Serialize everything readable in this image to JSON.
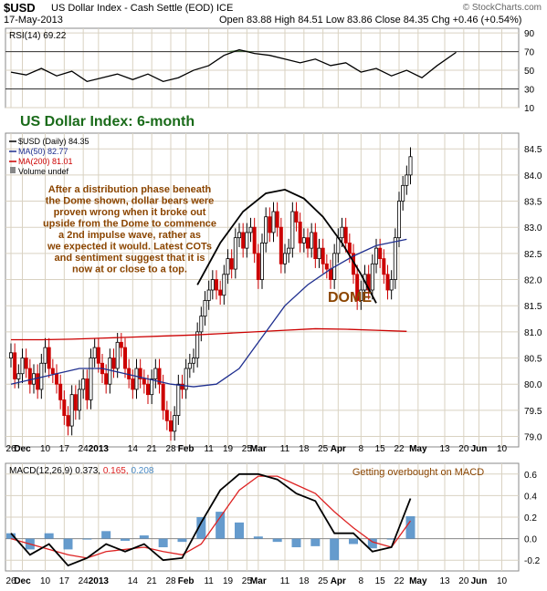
{
  "header": {
    "symbol": "$USD",
    "title": "US Dollar Index - Cash Settle (EOD)  ICE",
    "date": "17-May-2013",
    "ohlc": "Open 83.88   High 84.51   Low 83.86   Close 84.35   Chg +0.46 (+0.54%)",
    "watermark": "© StockCharts.com"
  },
  "colors": {
    "grid": "#d9d2c2",
    "panel_bg": "#ffffff",
    "up": "#000000",
    "down": "#cc0000",
    "ma50": "#1f2f8f",
    "ma200": "#cc0000",
    "rsi_fill": "#4a7a3a",
    "macd": "#000000",
    "signal": "#dd2222",
    "hist": "#4a8ac4",
    "title_green": "#1a6b1a",
    "annot_brown": "#8b4500"
  },
  "chart_data": [
    {
      "type": "line",
      "name_label": "RSI(14) 69.22",
      "ylim": [
        10,
        95
      ],
      "yticks": [
        10,
        30,
        50,
        70,
        90
      ],
      "guides": [
        30,
        70
      ],
      "x": [
        0,
        4,
        8,
        12,
        16,
        20,
        24,
        28,
        32,
        36,
        40,
        44,
        48,
        52,
        56,
        60,
        64,
        68,
        72,
        76,
        80,
        84,
        88,
        92,
        96,
        100,
        104,
        108,
        112,
        117
      ],
      "values": [
        48,
        45,
        52,
        44,
        49,
        38,
        42,
        46,
        40,
        46,
        38,
        42,
        50,
        55,
        66,
        72,
        68,
        66,
        62,
        58,
        62,
        55,
        58,
        48,
        52,
        44,
        50,
        42,
        55,
        69.22
      ]
    },
    {
      "type": "candlestick",
      "title": "US Dollar Index: 6-month",
      "legend": [
        "$USD (Daily) 84.35",
        "MA(50) 82.77",
        "MA(200) 81.01",
        "Volume undef"
      ],
      "ylim": [
        78.8,
        84.8
      ],
      "yticks": [
        79.0,
        79.5,
        80.0,
        80.5,
        81.0,
        81.5,
        82.0,
        82.5,
        83.0,
        83.5,
        84.0,
        84.5
      ],
      "close": [
        80.6,
        80.1,
        80.2,
        80.5,
        80.3,
        80.0,
        80.2,
        79.9,
        80.4,
        80.7,
        80.3,
        80.2,
        80.0,
        79.7,
        79.4,
        79.2,
        79.8,
        79.5,
        79.9,
        80.1,
        79.7,
        80.5,
        80.7,
        80.4,
        80.2,
        80.0,
        80.5,
        80.3,
        80.8,
        80.7,
        80.3,
        80.1,
        79.9,
        80.3,
        80.1,
        80.0,
        79.8,
        80.1,
        80.3,
        80.0,
        79.5,
        79.3,
        79.1,
        79.4,
        80.0,
        79.9,
        80.3,
        80.4,
        80.5,
        81.0,
        81.3,
        81.6,
        81.8,
        82.0,
        81.8,
        81.7,
        82.1,
        82.4,
        82.2,
        82.8,
        82.9,
        82.6,
        82.9,
        83.0,
        82.5,
        82.0,
        82.7,
        83.2,
        82.9,
        83.3,
        83.0,
        82.3,
        82.5,
        82.6,
        83.3,
        83.1,
        82.7,
        82.8,
        82.6,
        82.9,
        82.4,
        82.6,
        82.3,
        82.2,
        82.0,
        82.5,
        82.8,
        83.0,
        82.7,
        82.5,
        82.1,
        81.6,
        81.8,
        82.1,
        81.8,
        82.3,
        82.6,
        82.4,
        82.1,
        81.8,
        82.0,
        82.8,
        83.5,
        83.8,
        84.0,
        84.35
      ],
      "ma50": [
        80.0,
        80.1,
        80.2,
        80.3,
        80.3,
        80.2,
        80.1,
        80.0,
        79.95,
        80.0,
        80.3,
        80.9,
        81.5,
        81.9,
        82.2,
        82.45,
        82.65,
        82.77
      ],
      "ma50_x": [
        0,
        6,
        12,
        18,
        24,
        30,
        36,
        42,
        48,
        54,
        60,
        66,
        72,
        78,
        84,
        90,
        96,
        104
      ],
      "ma200": [
        80.85,
        80.85,
        80.86,
        80.88,
        80.9,
        80.92,
        80.94,
        80.97,
        81.0,
        81.03,
        81.06,
        81.05,
        81.03,
        81.01
      ],
      "ma200_x": [
        0,
        8,
        16,
        24,
        32,
        40,
        48,
        56,
        64,
        72,
        80,
        88,
        96,
        104
      ],
      "dome_label": "DOME",
      "dome": [
        [
          49,
          81.9
        ],
        [
          55,
          82.7
        ],
        [
          61,
          83.3
        ],
        [
          67,
          83.65
        ],
        [
          72,
          83.72
        ],
        [
          77,
          83.55
        ],
        [
          82,
          83.2
        ],
        [
          87,
          82.7
        ],
        [
          92,
          82.1
        ],
        [
          96,
          81.55
        ]
      ],
      "annotation": [
        "After a distribution phase beneath",
        "the Dome shown, dollar bears were",
        "proven wrong when it broke out",
        "upside from the Dome to commence",
        "a 2nd impulse wave, rather as",
        "we expected it would. Latest COTs",
        "and sentiment suggest that it is",
        "now at or close to a top."
      ]
    },
    {
      "type": "line",
      "name_label": "MACD(12,26,9)",
      "legend_values": [
        "0.373",
        "0.165",
        "0.208"
      ],
      "annotation": "Getting overbought on MACD",
      "ylim": [
        -0.3,
        0.7
      ],
      "yticks": [
        -0.2,
        0.0,
        0.2,
        0.4,
        0.6
      ],
      "x": [
        0,
        5,
        10,
        15,
        20,
        25,
        30,
        35,
        40,
        45,
        50,
        55,
        60,
        65,
        70,
        75,
        80,
        85,
        90,
        95,
        100,
        105
      ],
      "macd": [
        0.05,
        -0.15,
        -0.05,
        -0.25,
        -0.18,
        -0.05,
        -0.12,
        -0.05,
        -0.2,
        -0.18,
        0.15,
        0.45,
        0.6,
        0.6,
        0.55,
        0.42,
        0.35,
        0.05,
        0.05,
        -0.12,
        -0.08,
        0.373
      ],
      "signal": [
        0.0,
        -0.05,
        -0.1,
        -0.15,
        -0.18,
        -0.12,
        -0.1,
        -0.08,
        -0.12,
        -0.15,
        -0.05,
        0.2,
        0.45,
        0.58,
        0.58,
        0.5,
        0.42,
        0.25,
        0.1,
        -0.03,
        -0.08,
        0.165
      ]
    }
  ],
  "x_axis": {
    "labels": [
      "26",
      "Dec",
      "10",
      "17",
      "24",
      "2013",
      "14",
      "21",
      "28",
      "Feb",
      "11",
      "19",
      "25",
      "Mar",
      "11",
      "18",
      "25",
      "Apr",
      "8",
      "15",
      "22",
      "May",
      "13",
      "20",
      "Jun",
      "10"
    ],
    "positions": [
      0,
      3,
      9,
      14,
      19,
      23,
      32,
      37,
      42,
      46,
      52,
      57,
      62,
      65,
      72,
      77,
      82,
      86,
      92,
      97,
      102,
      107,
      114,
      119,
      123,
      129
    ]
  }
}
